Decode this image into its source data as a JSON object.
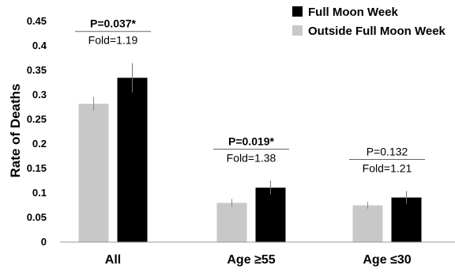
{
  "chart_data": {
    "type": "bar",
    "categories": [
      "All",
      "Age ≥55",
      "Age ≤30"
    ],
    "series": [
      {
        "name": "Outside Full Moon Week",
        "values": [
          0.282,
          0.08,
          0.075
        ],
        "errors": [
          0.014,
          0.008,
          0.007
        ],
        "color": "#c8c8c8"
      },
      {
        "name": "Full Moon Week",
        "values": [
          0.335,
          0.111,
          0.091
        ],
        "errors": [
          0.03,
          0.014,
          0.013
        ],
        "color": "#000000"
      }
    ],
    "annotations": [
      {
        "p": "P=0.037*",
        "fold": "Fold=1.19",
        "bold": true
      },
      {
        "p": "P=0.019*",
        "fold": "Fold=1.38",
        "bold": true
      },
      {
        "p": "P=0.132",
        "fold": "Fold=1.21",
        "bold": false
      }
    ],
    "ylabel": "Rate of Deaths",
    "ylim": [
      0,
      0.45
    ],
    "yticks": [
      "0",
      "0.05",
      "0.1",
      "0.15",
      "0.2",
      "0.25",
      "0.3",
      "0.35",
      "0.4",
      "0.45"
    ],
    "legend_position": "top-right",
    "grid": false
  }
}
